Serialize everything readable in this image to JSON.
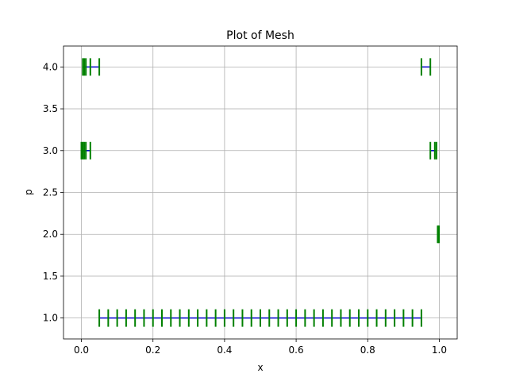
{
  "chart_data": {
    "type": "scatter",
    "title": "Plot of Mesh",
    "xlabel": "x",
    "ylabel": "p",
    "xlim": [
      -0.05,
      1.05
    ],
    "ylim": [
      0.75,
      4.25
    ],
    "xticks": [
      0.0,
      0.2,
      0.4,
      0.6,
      0.8,
      1.0
    ],
    "xtick_labels": [
      "0.0",
      "0.2",
      "0.4",
      "0.6",
      "0.8",
      "1.0"
    ],
    "yticks": [
      1.0,
      1.5,
      2.0,
      2.5,
      3.0,
      3.5,
      4.0
    ],
    "ytick_labels": [
      "1.0",
      "1.5",
      "2.0",
      "2.5",
      "3.0",
      "3.5",
      "4.0"
    ],
    "grid": true,
    "colors": {
      "segment": "#0000cc",
      "node": "#008000"
    },
    "series": [
      {
        "p": 1.0,
        "nodes": [
          0.05,
          0.075,
          0.1,
          0.125,
          0.15,
          0.175,
          0.2,
          0.225,
          0.25,
          0.275,
          0.3,
          0.325,
          0.35,
          0.375,
          0.4,
          0.425,
          0.45,
          0.475,
          0.5,
          0.525,
          0.55,
          0.575,
          0.6,
          0.625,
          0.65,
          0.675,
          0.7,
          0.725,
          0.75,
          0.775,
          0.8,
          0.825,
          0.85,
          0.875,
          0.9,
          0.925,
          0.95
        ]
      },
      {
        "p": 2.0,
        "nodes": [
          0.9955,
          0.9975,
          0.999
        ]
      },
      {
        "p": 3.0,
        "nodes": [
          0.0,
          0.004,
          0.008,
          0.0125,
          0.025
        ]
      },
      {
        "p": 3.0,
        "nodes": [
          0.975,
          0.9875,
          0.992
        ]
      },
      {
        "p": 4.0,
        "nodes": [
          0.004,
          0.008,
          0.0125,
          0.025,
          0.05
        ]
      },
      {
        "p": 4.0,
        "nodes": [
          0.95,
          0.975
        ]
      }
    ]
  }
}
